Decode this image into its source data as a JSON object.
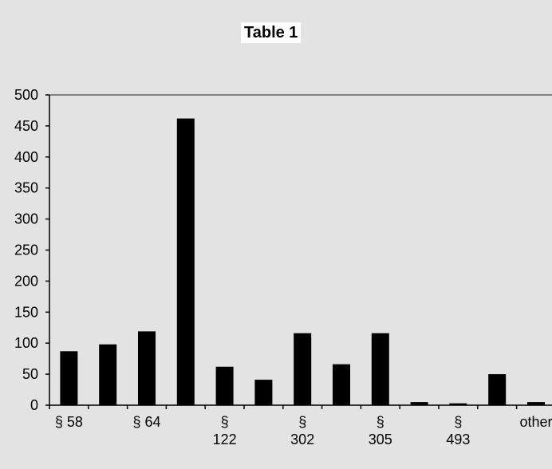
{
  "chart_data": {
    "type": "bar",
    "title": "Table 1",
    "categories": [
      "§ 58",
      "",
      "§ 64",
      "",
      "§ 122",
      "",
      "§ 302",
      "",
      "§ 305",
      "",
      "§ 493",
      "",
      "other"
    ],
    "category_label_lines": [
      [
        "§ 58"
      ],
      [],
      [
        "§ 64"
      ],
      [],
      [
        "§",
        "122"
      ],
      [],
      [
        "§",
        "302"
      ],
      [],
      [
        "§",
        "305"
      ],
      [],
      [
        "§",
        "493"
      ],
      [],
      [
        "other"
      ]
    ],
    "values": [
      87,
      98,
      119,
      462,
      62,
      41,
      116,
      66,
      116,
      5,
      3,
      50,
      5
    ],
    "ylim": [
      0,
      500
    ],
    "yticks": [
      0,
      50,
      100,
      150,
      200,
      250,
      300,
      350,
      400,
      450,
      500
    ],
    "xlabel": "",
    "ylabel": "",
    "grid": false,
    "legend": "none",
    "colors": {
      "bar": "#000000",
      "plot_bg": "#e3e3e3",
      "axis": "#000000",
      "top_border": "#808080"
    }
  }
}
